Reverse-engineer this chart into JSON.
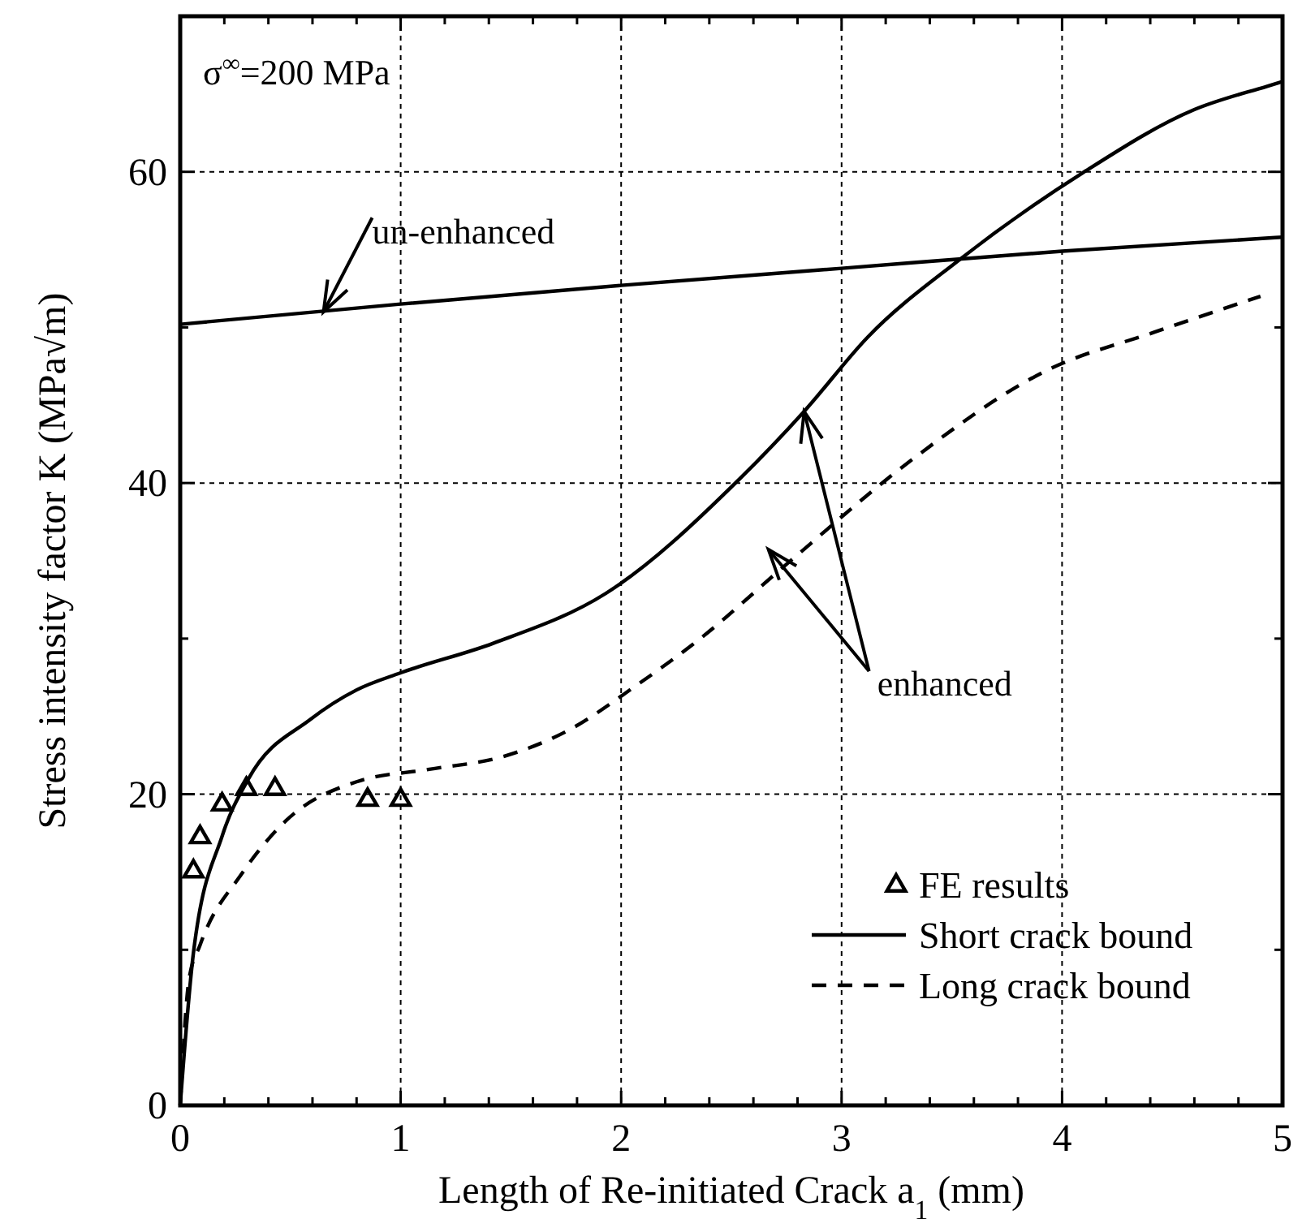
{
  "chart_data": {
    "type": "line",
    "xlabel": "Length of Re-initiated Crack  a$_{1}$  (mm)",
    "ylabel": "Stress intensity factor  K  (MPa√m)",
    "xlim": [
      0,
      5
    ],
    "ylim": [
      0,
      70
    ],
    "xticks": [
      0,
      {
        "value": 0.2,
        "label": null
      },
      {
        "value": 0.4,
        "label": null
      },
      {
        "value": 0.6,
        "label": null
      },
      {
        "value": 0.8,
        "label": null
      },
      1,
      {
        "value": 1.2,
        "label": null
      },
      {
        "value": 1.4,
        "label": null
      },
      {
        "value": 1.6,
        "label": null
      },
      {
        "value": 1.8,
        "label": null
      },
      2,
      {
        "value": 2.2,
        "label": null
      },
      {
        "value": 2.4,
        "label": null
      },
      {
        "value": 2.6,
        "label": null
      },
      {
        "value": 2.8,
        "label": null
      },
      3,
      {
        "value": 3.2,
        "label": null
      },
      {
        "value": 3.4,
        "label": null
      },
      {
        "value": 3.6,
        "label": null
      },
      {
        "value": 3.8,
        "label": null
      },
      4,
      {
        "value": 4.2,
        "label": null
      },
      {
        "value": 4.4,
        "label": null
      },
      {
        "value": 4.6,
        "label": null
      },
      {
        "value": 4.8,
        "label": null
      },
      5
    ],
    "yticks": [
      0,
      {
        "value": 10,
        "label": null
      },
      20,
      {
        "value": 30,
        "label": null
      },
      40,
      {
        "value": 50,
        "label": null
      },
      60,
      {
        "value": 70,
        "label": null
      }
    ],
    "grid": true,
    "legend": "bottom right",
    "annotations": [
      "σ$^{∞}$=200 MPa",
      {
        "text": "un-enhanced",
        "x": 0.65,
        "y": 51.0
      },
      {
        "text": "enhanced",
        "x": 2.83,
        "y": 44.6
      }
    ],
    "series": [
      {
        "type": "scatter",
        "name": "FE results",
        "color": "#000000",
        "marker": "triangle",
        "x": [
          0.06,
          0.09,
          0.19,
          0.3,
          0.43,
          0.85,
          1.0
        ],
        "values": [
          15.1,
          17.3,
          19.4,
          20.4,
          20.4,
          19.7,
          19.7
        ]
      },
      {
        "name": "Short crack bound",
        "color": "#000000",
        "line_style": "solid",
        "x": [
          0,
          0.06,
          0.19,
          0.31,
          0.59,
          0.8,
          1.0,
          1.42,
          1.93,
          2.54,
          2.83,
          3.12,
          3.53,
          4.09,
          4.6,
          4.93,
          5
        ],
        "values": [
          0,
          9.8,
          17.3,
          21,
          24.8,
          26.7,
          27.8,
          29.7,
          32.9,
          40.3,
          44.6,
          49.4,
          54.3,
          59.9,
          64,
          65.5,
          65.8
        ]
      },
      {
        "name": "Long crack bound",
        "color": "#000000",
        "line_style": "dashed",
        "x": [
          0,
          0.04,
          0.09,
          0.28,
          0.48,
          0.8,
          1.13,
          1.46,
          1.76,
          2.07,
          2.35,
          2.76,
          3.31,
          3.94,
          4.42,
          4.9
        ],
        "values": [
          0,
          8.1,
          10.3,
          14.9,
          18.3,
          20.8,
          21.6,
          22.4,
          24.1,
          27,
          29.9,
          34.9,
          41.4,
          47.3,
          49.7,
          52
        ]
      },
      {
        "color": "#000000",
        "line_style": "solid",
        "x": [
          0,
          1,
          2,
          3,
          4,
          5
        ],
        "values": [
          50.2,
          51.5,
          52.7,
          53.8,
          54.9,
          55.8
        ]
      }
    ]
  }
}
